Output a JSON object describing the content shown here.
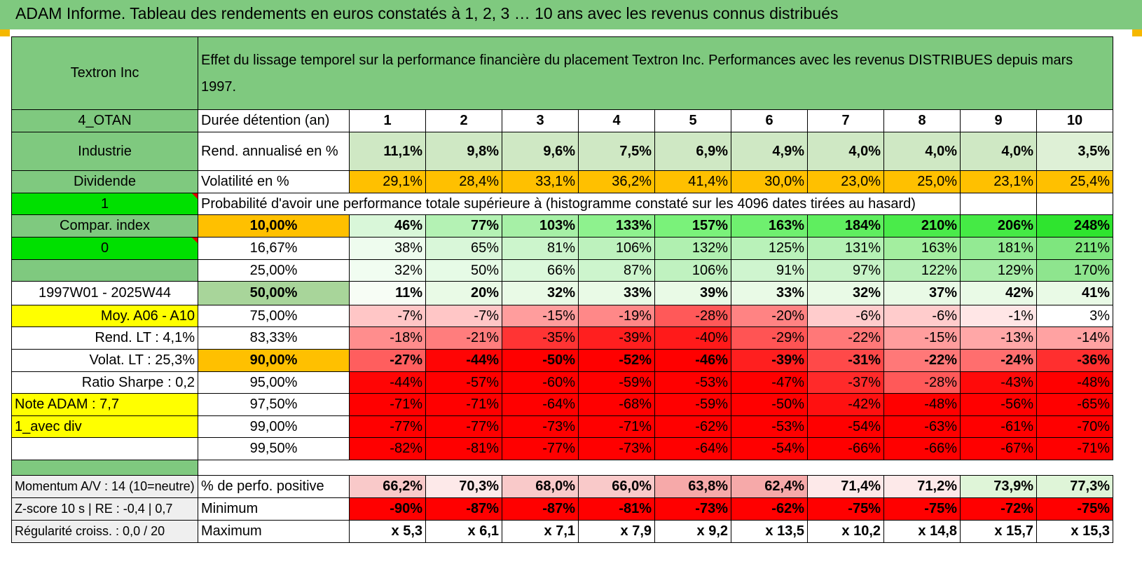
{
  "header": {
    "title": "ADAM Informe. Tableau des rendements en euros constatés à 1, 2, 3 … 10 ans avec les revenus connus distribués"
  },
  "colors": {
    "header_green": "#7fc97f",
    "bright_green": "#00e000",
    "yellow": "#ffff00",
    "orange": "#ffc000",
    "label_red": "#e00000"
  },
  "fund": {
    "name": "Textron Inc",
    "description": "Effet du lissage temporel sur la performance financière du placement Textron Inc. Performances avec les revenus DISTRIBUES depuis mars 1997."
  },
  "side": {
    "code": "4_OTAN",
    "sector": "Industrie",
    "type": "Dividende",
    "flag1": "1",
    "compar": "Compar. index",
    "flag2": "0",
    "blank": "",
    "period": "1997W01 - 2025W44",
    "moy": "Moy. A06 - A10",
    "rend_lt": "Rend. LT :    4,1%",
    "volat_lt": "Volat. LT :    25,3%",
    "sharpe": "Ratio Sharpe :    0,2",
    "note": "Note ADAM : 7,7",
    "div": "1_avec div"
  },
  "rows": {
    "duree": {
      "label": "Durée détention (an)",
      "values": [
        "1",
        "2",
        "3",
        "4",
        "5",
        "6",
        "7",
        "8",
        "9",
        "10"
      ]
    },
    "rend": {
      "label": "Rend. annualisé en %",
      "values": [
        "11,1%",
        "9,8%",
        "9,6%",
        "7,5%",
        "6,9%",
        "4,9%",
        "4,0%",
        "4,0%",
        "4,0%",
        "3,5%"
      ]
    },
    "vol": {
      "label": "Volatilité en %",
      "values": [
        "29,1%",
        "28,4%",
        "33,1%",
        "36,2%",
        "41,4%",
        "30,0%",
        "23,0%",
        "25,0%",
        "23,1%",
        "25,4%"
      ]
    },
    "proba_title": "Probabilité d'avoir une performance totale supérieure à (histogramme constaté sur les 4096 dates tirées au hasard)"
  },
  "prob": [
    {
      "label": "10,00%",
      "values": [
        "46%",
        "77%",
        "103%",
        "133%",
        "157%",
        "163%",
        "184%",
        "210%",
        "206%",
        "248%"
      ]
    },
    {
      "label": "16,67%",
      "values": [
        "38%",
        "65%",
        "81%",
        "106%",
        "132%",
        "125%",
        "131%",
        "163%",
        "181%",
        "211%"
      ]
    },
    {
      "label": "25,00%",
      "values": [
        "32%",
        "50%",
        "66%",
        "87%",
        "106%",
        "91%",
        "97%",
        "122%",
        "129%",
        "170%"
      ]
    },
    {
      "label": "50,00%",
      "values": [
        "11%",
        "20%",
        "32%",
        "33%",
        "39%",
        "33%",
        "32%",
        "37%",
        "42%",
        "41%"
      ]
    },
    {
      "label": "75,00%",
      "values": [
        "-7%",
        "-7%",
        "-15%",
        "-19%",
        "-28%",
        "-20%",
        "-6%",
        "-6%",
        "-1%",
        "3%"
      ]
    },
    {
      "label": "83,33%",
      "values": [
        "-18%",
        "-21%",
        "-35%",
        "-39%",
        "-40%",
        "-29%",
        "-22%",
        "-15%",
        "-13%",
        "-14%"
      ]
    },
    {
      "label": "90,00%",
      "values": [
        "-27%",
        "-44%",
        "-50%",
        "-52%",
        "-46%",
        "-39%",
        "-31%",
        "-22%",
        "-24%",
        "-36%"
      ]
    },
    {
      "label": "95,00%",
      "values": [
        "-44%",
        "-57%",
        "-60%",
        "-59%",
        "-53%",
        "-47%",
        "-37%",
        "-28%",
        "-43%",
        "-48%"
      ]
    },
    {
      "label": "97,50%",
      "values": [
        "-71%",
        "-71%",
        "-64%",
        "-68%",
        "-59%",
        "-50%",
        "-42%",
        "-48%",
        "-56%",
        "-65%"
      ]
    },
    {
      "label": "99,00%",
      "values": [
        "-77%",
        "-77%",
        "-73%",
        "-71%",
        "-62%",
        "-53%",
        "-54%",
        "-63%",
        "-61%",
        "-70%"
      ]
    },
    {
      "label": "99,50%",
      "values": [
        "-82%",
        "-81%",
        "-77%",
        "-73%",
        "-64%",
        "-54%",
        "-66%",
        "-66%",
        "-67%",
        "-71%"
      ]
    }
  ],
  "bottom": [
    {
      "side": "Momentum A/V : 14 (10=neutre)",
      "label": "% de perfo. positive",
      "values": [
        "66,2%",
        "70,3%",
        "68,0%",
        "66,0%",
        "63,8%",
        "62,4%",
        "71,4%",
        "71,2%",
        "73,9%",
        "77,3%"
      ]
    },
    {
      "side": "Z-score 10 s | RE : -0,4 | 0,7",
      "label": "Minimum",
      "values": [
        "-90%",
        "-87%",
        "-87%",
        "-81%",
        "-73%",
        "-62%",
        "-75%",
        "-75%",
        "-72%",
        "-75%"
      ]
    },
    {
      "side": "Régularité croiss. : 0,0 / 20",
      "label": "Maximum",
      "values": [
        "x 5,3",
        "x 6,1",
        "x 7,1",
        "x 7,9",
        "x 9,2",
        "x 13,5",
        "x 10,2",
        "x 14,8",
        "x 15,7",
        "x 15,3"
      ]
    }
  ]
}
